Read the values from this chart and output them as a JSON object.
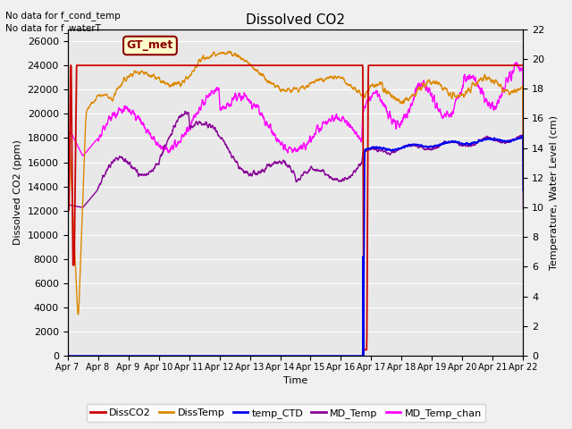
{
  "title": "Dissolved CO2",
  "xlabel": "Time",
  "ylabel_left": "Dissolved CO2 (ppm)",
  "ylabel_right": "Temperature, Water Level (cm)",
  "annotations": [
    "No data for f_cond_temp",
    "No data for f_waterT"
  ],
  "gt_met_label": "GT_met",
  "ylim_left": [
    0,
    27000
  ],
  "ylim_right": [
    0,
    22
  ],
  "yticks_left": [
    0,
    2000,
    4000,
    6000,
    8000,
    10000,
    12000,
    14000,
    16000,
    18000,
    20000,
    22000,
    24000,
    26000
  ],
  "yticks_right": [
    0,
    2,
    4,
    6,
    8,
    10,
    12,
    14,
    16,
    18,
    20,
    22
  ],
  "xtick_labels": [
    "Apr 7",
    "Apr 8",
    "Apr 9",
    "Apr 10",
    "Apr 11",
    "Apr 12",
    "Apr 13",
    "Apr 14",
    "Apr 15",
    "Apr 16",
    "Apr 17",
    "Apr 18",
    "Apr 19",
    "Apr 20",
    "Apr 21",
    "Apr 22"
  ],
  "colors": {
    "DissCO2": "#cc0000",
    "DissTemp": "#dd8800",
    "temp_CTD": "#0000ee",
    "MD_Temp": "#880099",
    "MD_Temp_chan": "#ff00ff"
  },
  "fig_facecolor": "#f0f0f0",
  "plot_bg_color": "#e8e8e8",
  "grid_color": "#ffffff",
  "legend_labels": [
    "DissCO2",
    "DissTemp",
    "temp_CTD",
    "MD_Temp",
    "MD_Temp_chan"
  ]
}
